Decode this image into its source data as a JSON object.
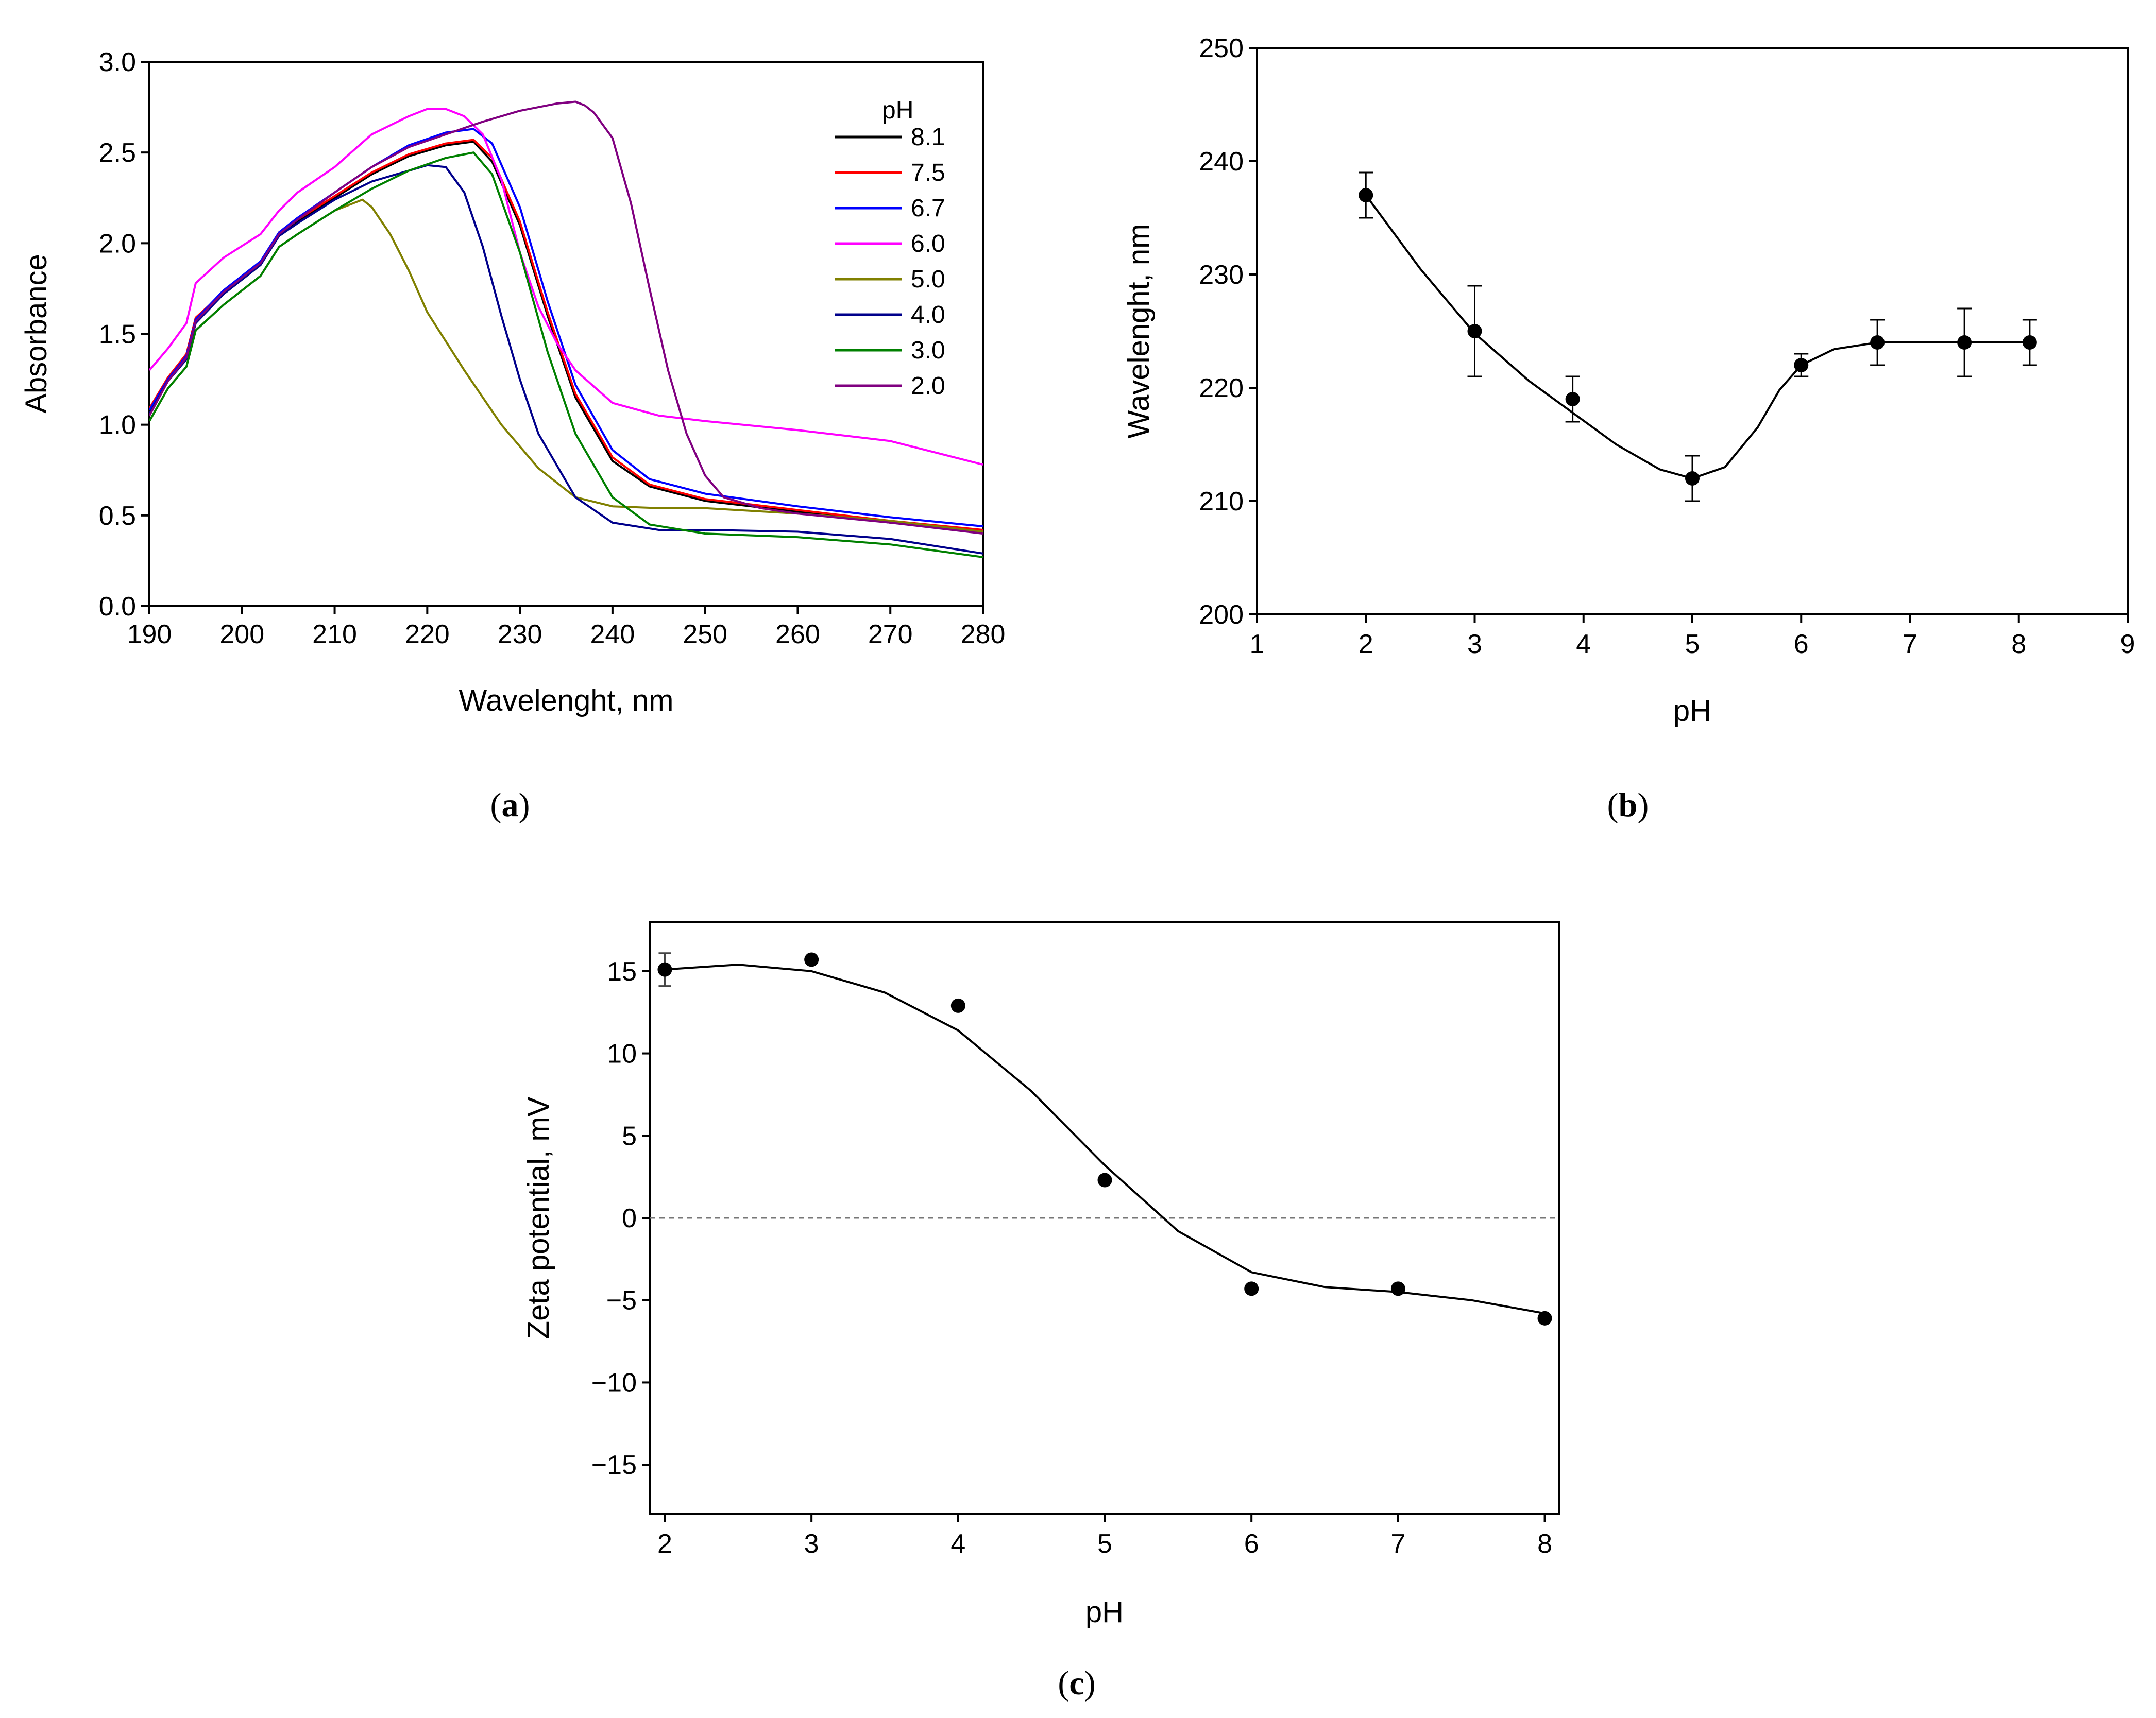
{
  "chart_data": [
    {
      "type": "line",
      "panel": "a",
      "panel_label": "a",
      "xlabel": "Wavelenght, nm",
      "ylabel": "Absorbance",
      "xlim": [
        190,
        280
      ],
      "ylim": [
        0.0,
        3.0
      ],
      "xticks": [
        190,
        200,
        210,
        220,
        230,
        240,
        250,
        260,
        270,
        280
      ],
      "yticks": [
        "0.0",
        "0.5",
        "1.0",
        "1.5",
        "2.0",
        "2.5",
        "3.0"
      ],
      "legend_title": "pH",
      "legend_position": "top-right",
      "series": [
        {
          "name": "8.1",
          "color": "#000000",
          "x": [
            190,
            192,
            194,
            195,
            198,
            202,
            204,
            206,
            210,
            214,
            218,
            222,
            225,
            227,
            230,
            233,
            236,
            240,
            244,
            250,
            260,
            270,
            280
          ],
          "y": [
            1.08,
            1.25,
            1.38,
            1.58,
            1.72,
            1.88,
            2.05,
            2.12,
            2.25,
            2.38,
            2.48,
            2.54,
            2.56,
            2.45,
            2.1,
            1.6,
            1.15,
            0.8,
            0.66,
            0.58,
            0.52,
            0.46,
            0.41
          ]
        },
        {
          "name": "7.5",
          "color": "#ff0000",
          "x": [
            190,
            192,
            194,
            195,
            198,
            202,
            204,
            206,
            210,
            214,
            218,
            222,
            225,
            227,
            230,
            233,
            236,
            240,
            244,
            250,
            260,
            270,
            280
          ],
          "y": [
            1.09,
            1.26,
            1.39,
            1.59,
            1.73,
            1.89,
            2.06,
            2.13,
            2.26,
            2.39,
            2.49,
            2.55,
            2.57,
            2.47,
            2.12,
            1.62,
            1.17,
            0.82,
            0.67,
            0.59,
            0.53,
            0.47,
            0.42
          ]
        },
        {
          "name": "6.7",
          "color": "#0000ff",
          "x": [
            190,
            192,
            194,
            195,
            198,
            202,
            204,
            206,
            210,
            214,
            218,
            222,
            225,
            227,
            230,
            233,
            236,
            240,
            244,
            250,
            260,
            270,
            280
          ],
          "y": [
            1.08,
            1.25,
            1.38,
            1.58,
            1.74,
            1.9,
            2.06,
            2.14,
            2.28,
            2.42,
            2.54,
            2.61,
            2.63,
            2.55,
            2.2,
            1.68,
            1.22,
            0.86,
            0.7,
            0.62,
            0.55,
            0.49,
            0.44
          ]
        },
        {
          "name": "6.0",
          "color": "#ff00ff",
          "x": [
            190,
            192,
            194,
            195,
            198,
            202,
            204,
            206,
            210,
            214,
            218,
            220,
            222,
            224,
            226,
            228,
            230,
            232,
            234,
            236,
            240,
            245,
            250,
            260,
            270,
            280
          ],
          "y": [
            1.3,
            1.42,
            1.56,
            1.78,
            1.92,
            2.05,
            2.18,
            2.28,
            2.42,
            2.6,
            2.7,
            2.74,
            2.74,
            2.7,
            2.6,
            2.35,
            1.95,
            1.65,
            1.45,
            1.3,
            1.12,
            1.05,
            1.02,
            0.97,
            0.91,
            0.78
          ]
        },
        {
          "name": "5.0",
          "color": "#808000",
          "x": [
            190,
            192,
            194,
            195,
            198,
            202,
            204,
            206,
            210,
            212,
            213,
            214,
            216,
            218,
            220,
            224,
            228,
            232,
            236,
            240,
            245,
            250,
            260,
            270,
            280
          ],
          "y": [
            1.02,
            1.2,
            1.32,
            1.52,
            1.66,
            1.82,
            1.98,
            2.05,
            2.18,
            2.22,
            2.24,
            2.2,
            2.05,
            1.85,
            1.62,
            1.3,
            1.0,
            0.76,
            0.6,
            0.55,
            0.54,
            0.54,
            0.51,
            0.47,
            0.41
          ]
        },
        {
          "name": "4.0",
          "color": "#00008b",
          "x": [
            190,
            192,
            194,
            195,
            198,
            202,
            204,
            206,
            210,
            214,
            218,
            220,
            222,
            224,
            226,
            228,
            230,
            232,
            236,
            240,
            245,
            250,
            260,
            270,
            280
          ],
          "y": [
            1.06,
            1.24,
            1.36,
            1.56,
            1.72,
            1.88,
            2.04,
            2.11,
            2.24,
            2.34,
            2.4,
            2.43,
            2.42,
            2.28,
            1.98,
            1.6,
            1.25,
            0.95,
            0.6,
            0.46,
            0.42,
            0.42,
            0.41,
            0.37,
            0.29
          ]
        },
        {
          "name": "3.0",
          "color": "#008000",
          "x": [
            190,
            192,
            194,
            195,
            198,
            202,
            204,
            206,
            210,
            214,
            218,
            222,
            225,
            227,
            230,
            233,
            236,
            240,
            244,
            250,
            260,
            270,
            280
          ],
          "y": [
            1.02,
            1.2,
            1.32,
            1.52,
            1.66,
            1.82,
            1.98,
            2.05,
            2.18,
            2.3,
            2.4,
            2.47,
            2.5,
            2.38,
            1.95,
            1.4,
            0.95,
            0.6,
            0.45,
            0.4,
            0.38,
            0.34,
            0.27
          ]
        },
        {
          "name": "2.0",
          "color": "#800080",
          "x": [
            190,
            192,
            194,
            195,
            198,
            202,
            204,
            206,
            210,
            214,
            218,
            222,
            226,
            230,
            234,
            236,
            237,
            238,
            240,
            242,
            244,
            246,
            248,
            250,
            252,
            256,
            260,
            270,
            280
          ],
          "y": [
            1.05,
            1.24,
            1.37,
            1.57,
            1.73,
            1.89,
            2.05,
            2.13,
            2.28,
            2.42,
            2.53,
            2.6,
            2.67,
            2.73,
            2.77,
            2.78,
            2.76,
            2.72,
            2.58,
            2.22,
            1.75,
            1.3,
            0.95,
            0.72,
            0.6,
            0.54,
            0.51,
            0.46,
            0.4
          ]
        }
      ]
    },
    {
      "type": "scatter",
      "panel": "b",
      "panel_label": "b",
      "xlabel": "pH",
      "ylabel": "Wavelenght, nm",
      "xlim": [
        1,
        9
      ],
      "ylim": [
        200,
        250
      ],
      "xticks": [
        "1",
        "2",
        "3",
        "4",
        "5",
        "6",
        "7",
        "8",
        "9"
      ],
      "yticks": [
        "200",
        "210",
        "220",
        "230",
        "240",
        "250"
      ],
      "points": {
        "x": [
          2,
          3,
          3.9,
          5,
          6,
          6.7,
          7.5,
          8.1
        ],
        "y": [
          237,
          225,
          219,
          212,
          222,
          224,
          224,
          224
        ],
        "err": [
          2,
          4,
          2,
          2,
          1,
          2,
          3,
          2
        ]
      },
      "fit": {
        "x": [
          2,
          2.5,
          3,
          3.5,
          3.9,
          4.3,
          4.7,
          5,
          5.3,
          5.6,
          5.8,
          6,
          6.3,
          6.7,
          7.5,
          8.1
        ],
        "y": [
          237,
          230.5,
          224.8,
          220.6,
          217.8,
          215,
          212.8,
          212,
          213,
          216.5,
          219.8,
          222,
          223.4,
          224,
          224,
          224
        ]
      }
    },
    {
      "type": "scatter",
      "panel": "c",
      "panel_label": "c",
      "xlabel": "pH",
      "ylabel": "Zeta potential, mV",
      "xlim": [
        1.9,
        8.1
      ],
      "ylim": [
        -18,
        18
      ],
      "xticks": [
        "2",
        "3",
        "4",
        "5",
        "6",
        "7",
        "8"
      ],
      "yticks": [
        "15",
        "10",
        "5",
        "0",
        "−5",
        "−10",
        "−15"
      ],
      "reference_line": {
        "y": 0,
        "style": "dashed"
      },
      "points": {
        "x": [
          2,
          3,
          4,
          5,
          6,
          7,
          8
        ],
        "y": [
          15.1,
          15.7,
          12.9,
          2.3,
          -4.3,
          -4.3,
          -6.1
        ],
        "err": [
          1.0,
          0,
          0,
          0,
          0,
          0,
          0
        ]
      },
      "fit": {
        "x": [
          2,
          2.5,
          3,
          3.5,
          4,
          4.5,
          5,
          5.5,
          6,
          6.5,
          7,
          7.5,
          8
        ],
        "y": [
          15.1,
          15.4,
          15.0,
          13.7,
          11.4,
          7.7,
          3.2,
          -0.8,
          -3.3,
          -4.2,
          -4.5,
          -5.0,
          -5.8
        ]
      }
    }
  ]
}
